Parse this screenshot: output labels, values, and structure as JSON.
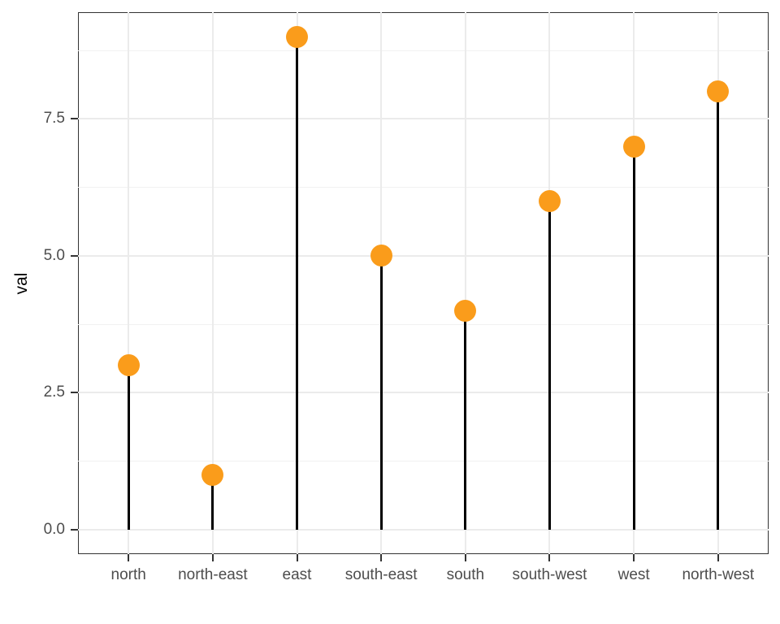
{
  "chart_data": {
    "type": "lollipop",
    "title": "",
    "xlabel": "",
    "ylabel": "val",
    "categories": [
      "north",
      "north-east",
      "east",
      "south-east",
      "south",
      "south-west",
      "west",
      "north-west"
    ],
    "values": [
      3,
      1,
      9,
      5,
      4,
      6,
      7,
      8
    ],
    "ylim": [
      -0.45,
      9.45
    ],
    "y_major_ticks": [
      0,
      2.5,
      5,
      7.5
    ],
    "y_tick_labels": [
      "0.0",
      "2.5",
      "5.0",
      "7.5"
    ],
    "y_minor_ticks": [
      1.25,
      3.75,
      6.25,
      8.75
    ],
    "grid": "major and minor horizontal, major vertical per category",
    "legend_position": "none",
    "colors": {
      "point": "#FA9C1B",
      "stem": "#000000",
      "grid_major": "#EBEBEB",
      "grid_minor": "#F1F1F1",
      "panel_border": "#333333",
      "tick_mark": "#333333",
      "axis_text": "#4D4D4D",
      "axis_title": "#000000",
      "background": "#FFFFFF"
    }
  }
}
